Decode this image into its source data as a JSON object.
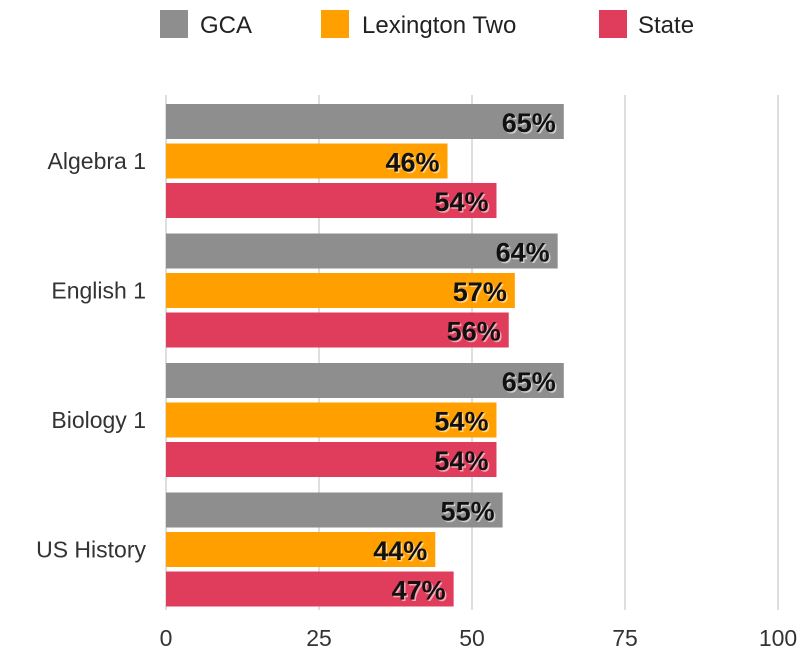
{
  "chart_data": {
    "type": "bar",
    "orientation": "horizontal",
    "categories": [
      "Algebra 1",
      "English 1",
      "Biology 1",
      "US History"
    ],
    "series": [
      {
        "name": "GCA",
        "color": "#8e8e8e",
        "values": [
          65,
          64,
          65,
          55
        ],
        "labels": [
          "65%",
          "64%",
          "65%",
          "55%"
        ]
      },
      {
        "name": "Lexington Two",
        "color": "#ffa000",
        "values": [
          46,
          57,
          54,
          44
        ],
        "labels": [
          "46%",
          "57%",
          "54%",
          "44%"
        ]
      },
      {
        "name": "State",
        "color": "#e03d5c",
        "values": [
          54,
          56,
          54,
          47
        ],
        "labels": [
          "54%",
          "56%",
          "54%",
          "47%"
        ]
      }
    ],
    "xlim": [
      0,
      100
    ],
    "x_ticks": [
      "0",
      "25",
      "50",
      "75",
      "100"
    ],
    "grid": "vertical",
    "legend_position": "top"
  }
}
